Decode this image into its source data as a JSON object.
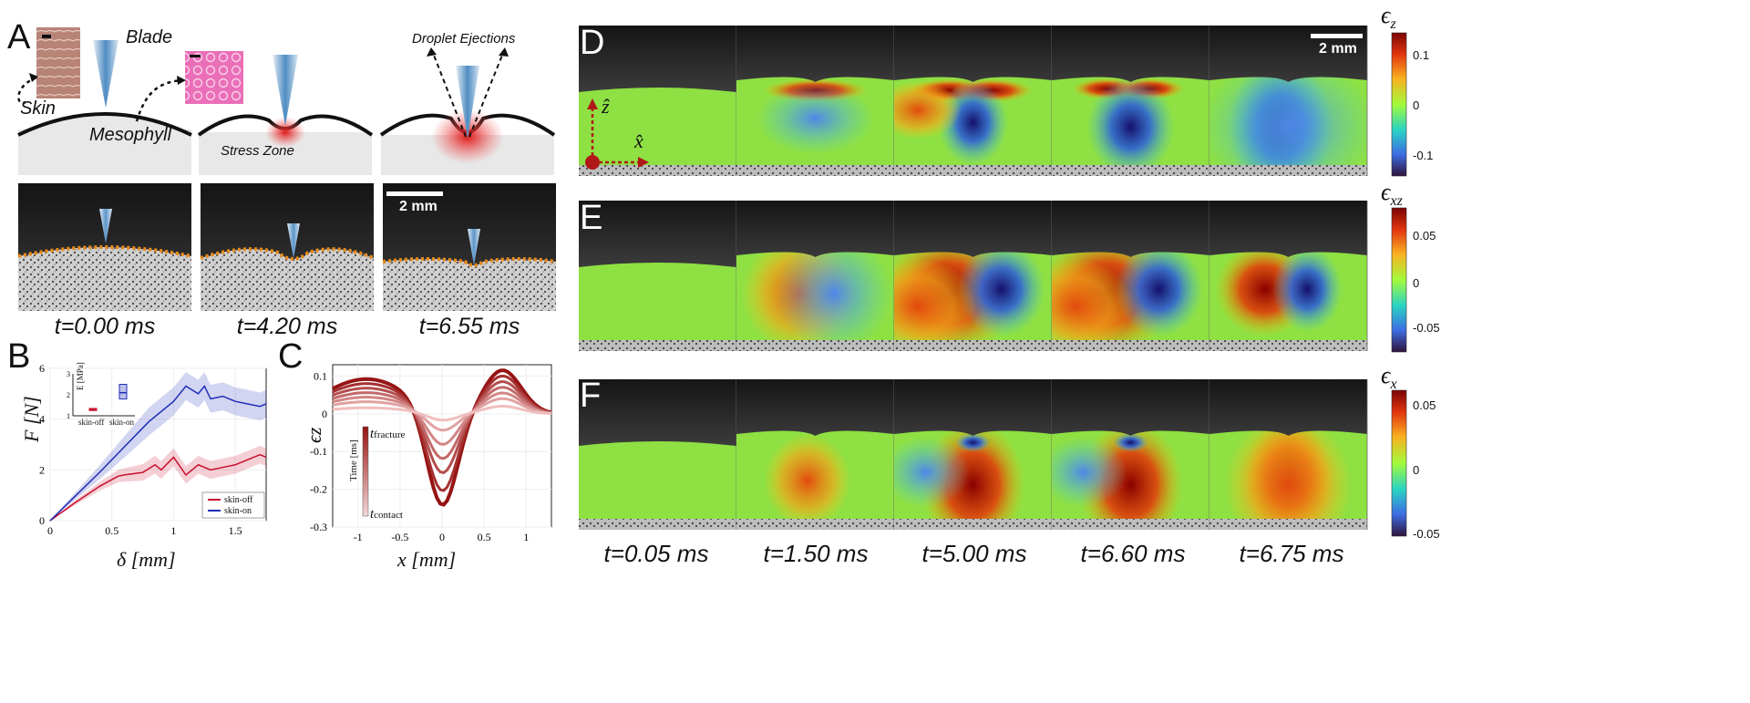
{
  "panelA": {
    "letter": "A",
    "labels": {
      "blade": "Blade",
      "skin": "Skin",
      "mesophyll": "Mesophyll",
      "stress_zone": "Stress Zone",
      "droplet": "Droplet Ejections",
      "scale": "2 mm"
    },
    "times": [
      "t=0.00 ms",
      "t=4.20 ms",
      "t=6.55 ms"
    ]
  },
  "panelB": {
    "letter": "B",
    "xlabel": "δ [mm]",
    "ylabel": "F [N]",
    "xticks": [
      "0",
      "0.5",
      "1",
      "1.5"
    ],
    "yticks": [
      "0",
      "2",
      "4",
      "6"
    ],
    "legend": [
      "skin-off",
      "skin-on"
    ],
    "inset": {
      "ylabel": "E [MPa]",
      "yticks": [
        "1",
        "2",
        "3"
      ],
      "xticks": [
        "skin-off",
        "skin-on"
      ]
    },
    "colors": {
      "skin_off": "#c8102e",
      "skin_on": "#1f2db8"
    }
  },
  "panelC": {
    "letter": "C",
    "xlabel": "x [mm]",
    "ylabel": "ϵz",
    "xticks": [
      "-1",
      "-0.5",
      "0",
      "0.5",
      "1"
    ],
    "yticks": [
      "0.1",
      "0",
      "-0.1",
      "-0.2",
      "-0.3"
    ],
    "legend_title": "Time [ms]",
    "legend_top": "t",
    "legend_top_sub": "fracture",
    "legend_bottom": "t",
    "legend_bottom_sub": "contact"
  },
  "panelsDEF": {
    "rows": [
      {
        "letter": "D",
        "cbar_sym": "ϵ",
        "cbar_sub": "z",
        "ticks": [
          "0.1",
          "0",
          "-0.1"
        ]
      },
      {
        "letter": "E",
        "cbar_sym": "ϵ",
        "cbar_sub": "xz",
        "ticks": [
          "0.05",
          "0",
          "-0.05"
        ]
      },
      {
        "letter": "F",
        "cbar_sym": "ϵ",
        "cbar_sub": "x",
        "ticks": [
          "0.05",
          "0",
          "-0.05"
        ]
      }
    ],
    "axis_z": "ẑ",
    "axis_x": "x̂",
    "scale": "2 mm",
    "times": [
      "t=0.05 ms",
      "t=1.50 ms",
      "t=5.00 ms",
      "t=6.60 ms",
      "t=6.75 ms"
    ]
  },
  "chart_data": [
    {
      "type": "line",
      "title": "",
      "xlabel": "δ [mm]",
      "ylabel": "F [N]",
      "xlim": [
        0,
        1.75
      ],
      "ylim": [
        0,
        6
      ],
      "series": [
        {
          "name": "skin-off",
          "x": [
            0,
            0.2,
            0.4,
            0.55,
            0.6,
            0.75,
            0.85,
            0.9,
            1.0,
            1.1,
            1.2,
            1.3,
            1.4,
            1.5,
            1.6,
            1.7,
            1.75
          ],
          "y": [
            0,
            0.7,
            1.35,
            1.75,
            1.8,
            1.9,
            2.2,
            2.0,
            2.5,
            1.8,
            2.2,
            2.0,
            2.1,
            2.2,
            2.4,
            2.6,
            2.5
          ]
        },
        {
          "name": "skin-on",
          "x": [
            0,
            0.2,
            0.4,
            0.6,
            0.8,
            1.0,
            1.1,
            1.2,
            1.25,
            1.3,
            1.4,
            1.5,
            1.6,
            1.7,
            1.75
          ],
          "y": [
            0,
            0.95,
            1.9,
            2.9,
            3.9,
            4.7,
            5.3,
            5.0,
            5.3,
            4.8,
            4.9,
            4.7,
            4.6,
            4.5,
            4.6
          ]
        }
      ],
      "inset": {
        "type": "box",
        "categories": [
          "skin-off",
          "skin-on"
        ],
        "median": [
          1.3,
          2.1
        ],
        "q1": [
          1.25,
          1.8
        ],
        "q3": [
          1.35,
          2.5
        ],
        "ylim": [
          1,
          3
        ]
      }
    },
    {
      "type": "line",
      "title": "",
      "xlabel": "x [mm]",
      "ylabel": "ϵz",
      "xlim": [
        -1.3,
        1.3
      ],
      "ylim": [
        -0.3,
        0.13
      ],
      "series": [
        {
          "min": -0.26,
          "side": 0.115
        },
        {
          "min": -0.22,
          "side": 0.1
        },
        {
          "min": -0.17,
          "side": 0.085
        },
        {
          "min": -0.13,
          "side": 0.07
        },
        {
          "min": -0.09,
          "side": 0.055
        },
        {
          "min": -0.05,
          "side": 0.04
        },
        {
          "min": -0.02,
          "side": 0.02
        }
      ]
    }
  ]
}
